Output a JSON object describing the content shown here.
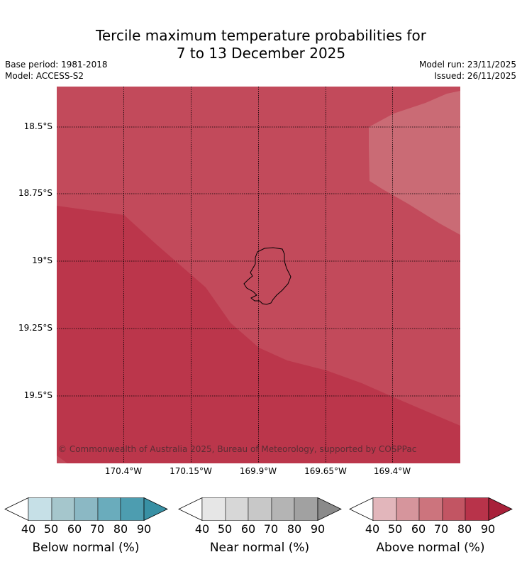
{
  "title": {
    "line1": "Tercile maximum temperature probabilities for",
    "line2": "7 to 13 December 2025"
  },
  "meta": {
    "base_period": "Base period: 1981-2018",
    "model": "Model: ACCESS-S2",
    "model_run": "Model run: 23/11/2025",
    "issued": "Issued: 26/11/2025"
  },
  "map": {
    "lat_labels": [
      "18.5°S",
      "18.75°S",
      "19°S",
      "19.25°S",
      "19.5°S"
    ],
    "lon_labels": [
      "170.4°W",
      "170.15°W",
      "169.9°W",
      "169.65°W",
      "169.4°W"
    ],
    "copyright": "© Commonwealth of Australia 2025, Bureau of Meteorology, supported by COSPPac",
    "colors": {
      "above_80_90": "#bb364b",
      "above_70_80": "#c24a5b",
      "above_60_70": "#ca6b75"
    }
  },
  "colorbars": [
    {
      "label": "Below normal (%)",
      "ticks": [
        "40",
        "50",
        "60",
        "70",
        "80",
        "90"
      ],
      "colors": [
        "#c6e0e7",
        "#a5c6cc",
        "#8bb8c4",
        "#6aacbc",
        "#4d9db0"
      ],
      "extend_color": "#3890a4"
    },
    {
      "label": "Near normal (%)",
      "ticks": [
        "40",
        "50",
        "60",
        "70",
        "80",
        "90"
      ],
      "colors": [
        "#e6e6e6",
        "#d7d7d7",
        "#c8c8c8",
        "#b4b4b4",
        "#a1a1a1"
      ],
      "extend_color": "#8a8a8a"
    },
    {
      "label": "Above normal (%)",
      "ticks": [
        "40",
        "50",
        "60",
        "70",
        "80",
        "90"
      ],
      "colors": [
        "#e2b6bb",
        "#d6959c",
        "#cc747d",
        "#c25563",
        "#b8334a"
      ],
      "extend_color": "#a8213a"
    }
  ]
}
